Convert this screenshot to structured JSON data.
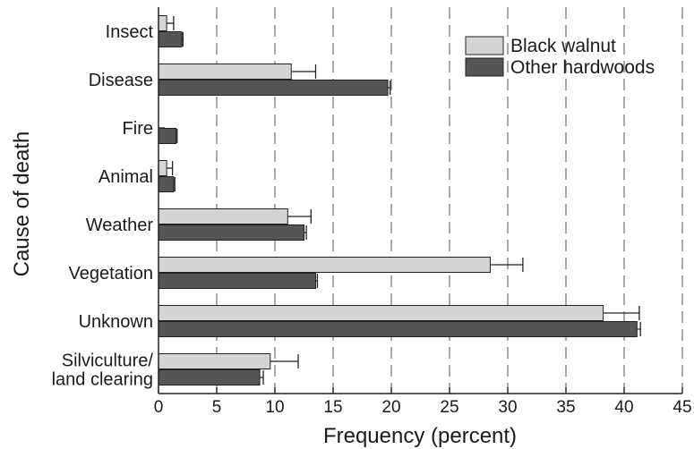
{
  "chart_data": {
    "type": "bar",
    "orientation": "horizontal",
    "title": "",
    "xlabel": "Frequency (percent)",
    "ylabel": "Cause of death",
    "xlim": [
      0,
      45
    ],
    "xticks": [
      0,
      5,
      10,
      15,
      20,
      25,
      30,
      35,
      40,
      45
    ],
    "grid": "dashed vertical",
    "legend_position": "top-right",
    "categories": [
      [
        "Insect"
      ],
      [
        "Disease"
      ],
      [
        "Fire"
      ],
      [
        "Animal"
      ],
      [
        "Weather"
      ],
      [
        "Vegetation"
      ],
      [
        "Unknown"
      ],
      [
        "Silviculture/",
        "land clearing"
      ]
    ],
    "series": [
      {
        "name": "Black walnut",
        "color": "#d4d4d4",
        "values": [
          0.7,
          11.4,
          0,
          0.7,
          11.1,
          28.5,
          38.2,
          9.6
        ],
        "errors": [
          0.6,
          2.1,
          0,
          0.5,
          2.0,
          2.8,
          3.1,
          2.4
        ]
      },
      {
        "name": "Other hardwoods",
        "color": "#555555",
        "values": [
          2.0,
          19.7,
          1.5,
          1.3,
          12.5,
          13.5,
          41.1,
          8.7
        ],
        "errors": [
          0.1,
          0.2,
          0.1,
          0.1,
          0.2,
          0.15,
          0.3,
          0.3
        ]
      }
    ]
  }
}
